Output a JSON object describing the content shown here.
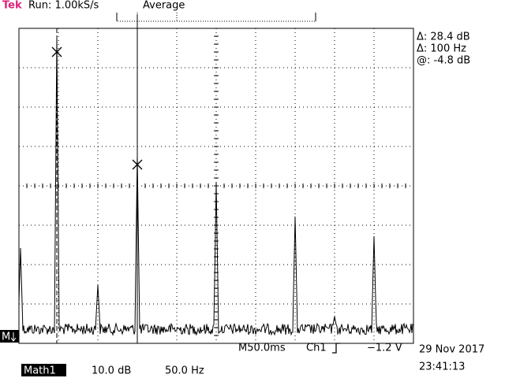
{
  "header": {
    "brand": "Tek",
    "status": "Run: 1.00kS/s",
    "mode": "Average"
  },
  "cursor_readout": [
    "Δ: 28.4 dB",
    "Δ: 100 Hz",
    "@: -4.8 dB"
  ],
  "channel_marker": "M",
  "timebase": "M50.0ms",
  "trigger_source": "Ch1",
  "trigger_level": "−1.2 V",
  "date": "29 Nov 2017",
  "time": "23:41:13",
  "math": {
    "label": "Math1",
    "scale": "10.0 dB",
    "span": "50.0 Hz"
  }
}
